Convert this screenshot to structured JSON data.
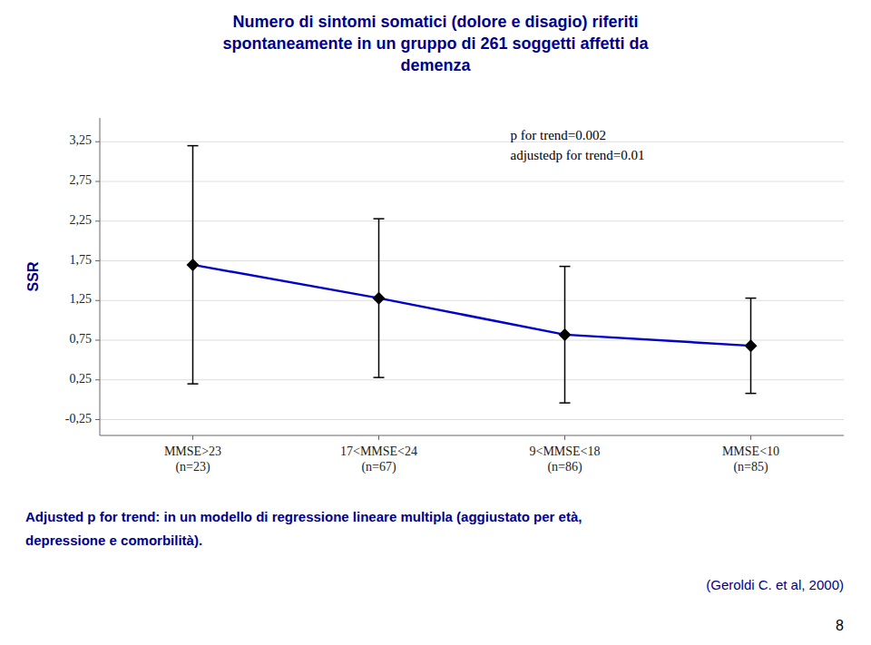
{
  "chart_data": {
    "type": "line",
    "title": "Numero di sintomi somatici (dolore e disagio) riferiti\nspontaneamente in un gruppo di 261 soggetti affetti da\ndemenza",
    "y_label": "SSR",
    "categories": [
      "MMSE>23\n(n=23)",
      "17<MMSE<24\n(n=67)",
      "9<MMSE<18\n(n=86)",
      "MMSE<10\n(n=85)"
    ],
    "values": [
      1.7,
      1.28,
      0.82,
      0.68
    ],
    "upper": [
      3.2,
      2.28,
      1.68,
      1.28
    ],
    "lower": [
      0.2,
      0.28,
      -0.04,
      0.08
    ],
    "color": "#0000CD",
    "marker": "diamond",
    "ylim": [
      -0.45,
      3.55
    ],
    "yticks": [
      {
        "value": -0.25,
        "label": "-0,25"
      },
      {
        "value": 0.25,
        "label": "0,25"
      },
      {
        "value": 0.75,
        "label": "0,75"
      },
      {
        "value": 1.25,
        "label": "1,25"
      },
      {
        "value": 1.75,
        "label": "1,75"
      },
      {
        "value": 2.25,
        "label": "2,25"
      },
      {
        "value": 2.75,
        "label": "2,75"
      },
      {
        "value": 3.25,
        "label": "3,25"
      }
    ],
    "grid": true,
    "annotations": [
      "p for trend=0.002",
      "adjustedp for trend=0.01"
    ],
    "footnotes": [
      "Adjusted p for trend: in un modello di regressione lineare multipla (aggiustato per età,",
      "depressione e comorbilità)."
    ],
    "source": "(Geroldi C. et al, 2000)",
    "page_number": "8"
  }
}
